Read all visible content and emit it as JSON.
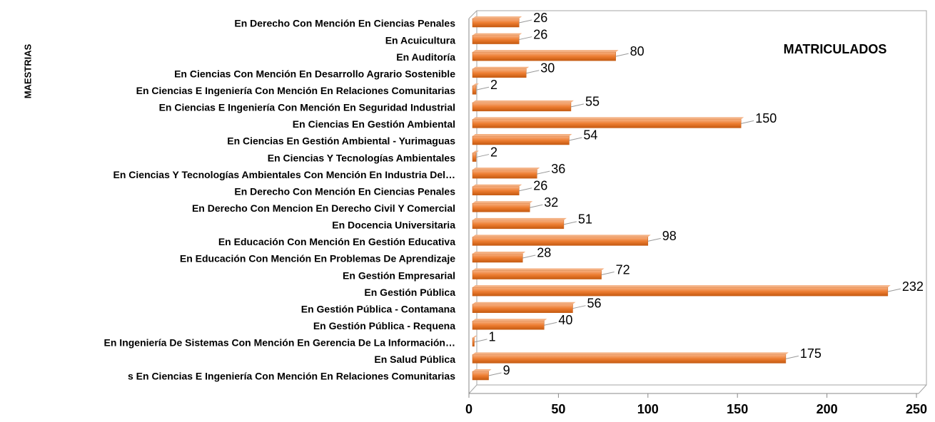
{
  "chart_data": {
    "type": "bar",
    "orientation": "horizontal",
    "title": "MATRICULADOS",
    "y_label": "MAESTRIAS",
    "categories": [
      "En Derecho Con Mención En Ciencias Penales",
      "En Acuicultura",
      "En Auditoría",
      "En Ciencias Con Mención En Desarrollo Agrario Sostenible",
      "En Ciencias E Ingeniería Con Mención En Relaciones Comunitarias",
      "En Ciencias E Ingeniería Con Mención En Seguridad Industrial",
      "En Ciencias En Gestión Ambiental",
      "En Ciencias En Gestión Ambiental - Yurimaguas",
      "En Ciencias Y Tecnologías Ambientales",
      "En Ciencias Y Tecnologías Ambientales Con Mención En Industria Del…",
      "En Derecho Con Mención En Ciencias Penales",
      "En Derecho Con Mencion En Derecho Civil Y Comercial",
      "En Docencia Universitaria",
      "En Educación Con Mención En Gestión Educativa",
      "En Educación Con Mención En Problemas De Aprendizaje",
      "En Gestión Empresarial",
      "En Gestión Pública",
      "En Gestión Pública - Contamana",
      "En Gestión Pública - Requena",
      "En Ingeniería De Sistemas Con Mención En Gerencia De La Información…",
      "En Salud Pública",
      "s En Ciencias E Ingeniería Con Mención En Relaciones Comunitarias"
    ],
    "values": [
      26,
      26,
      80,
      30,
      2,
      55,
      150,
      54,
      2,
      36,
      26,
      32,
      51,
      98,
      28,
      72,
      232,
      56,
      40,
      1,
      175,
      9
    ],
    "color": "#ed7d31",
    "xlim": [
      0,
      250
    ],
    "xticks": [
      0,
      50,
      100,
      150,
      200,
      250
    ]
  }
}
